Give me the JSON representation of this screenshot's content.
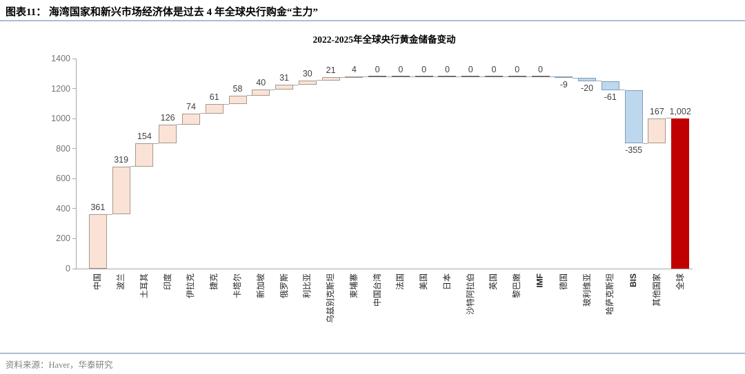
{
  "header": {
    "title": "图表11：  海湾国家和新兴市场经济体是过去 4 年全球央行购金“主力”"
  },
  "footer": {
    "source": "资料来源：Haver，华泰研究"
  },
  "chart_data": {
    "type": "bar",
    "subtype": "waterfall",
    "title": "2022-2025年全球央行黄金储备变动",
    "xlabel": "",
    "ylabel": "",
    "ylim": [
      0,
      1400
    ],
    "yticks": [
      0,
      200,
      400,
      600,
      800,
      1000,
      1200,
      1400
    ],
    "grid": false,
    "legend": "none",
    "categories": [
      "中国",
      "波兰",
      "土耳其",
      "印度",
      "伊拉克",
      "捷克",
      "卡塔尔",
      "新加坡",
      "俄罗斯",
      "利比亚",
      "乌兹别克斯坦",
      "柬埔寨",
      "中国台湾",
      "法国",
      "美国",
      "日本",
      "沙特阿拉伯",
      "英国",
      "黎巴嫩",
      "IMF",
      "德国",
      "玻利维亚",
      "哈萨克斯坦",
      "BIS",
      "其他国家",
      "全球"
    ],
    "values": [
      361,
      319,
      154,
      126,
      74,
      61,
      58,
      40,
      31,
      30,
      21,
      4,
      0,
      0,
      0,
      0,
      0,
      0,
      0,
      0,
      -9,
      -20,
      -61,
      -355,
      167,
      1002
    ],
    "value_labels": [
      "361",
      "319",
      "154",
      "126",
      "74",
      "61",
      "58",
      "40",
      "31",
      "30",
      "21",
      "4",
      "0",
      "0",
      "0",
      "0",
      "0",
      "0",
      "0",
      "0",
      "-9",
      "-20",
      "-61",
      "-355",
      "167",
      "1,002"
    ],
    "bar_types": [
      "up",
      "up",
      "up",
      "up",
      "up",
      "up",
      "up",
      "up",
      "up",
      "up",
      "up",
      "up",
      "zero",
      "zero",
      "zero",
      "zero",
      "zero",
      "zero",
      "zero",
      "zero",
      "down",
      "down",
      "down",
      "down",
      "up",
      "total"
    ],
    "colors": {
      "up_fill": "#fae3d6",
      "up_border": "#a4988d",
      "down_fill": "#bdd7ee",
      "down_border": "#7f9db9",
      "total_fill": "#c00000",
      "total_border": "#c00000",
      "connector": "#a6a6a6",
      "zero_segment": "#6e6e6e",
      "axis": "#a6a6a6"
    }
  }
}
